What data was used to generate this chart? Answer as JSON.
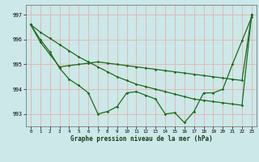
{
  "xlabel": "Graphe pression niveau de la mer (hPa)",
  "bg_color": "#cce8e8",
  "grid_color": "#e8b0b0",
  "line_color": "#1a6b1a",
  "ylim": [
    992.5,
    997.4
  ],
  "xlim": [
    -0.5,
    23.5
  ],
  "yticks": [
    993,
    994,
    995,
    996,
    997
  ],
  "xticks": [
    0,
    1,
    2,
    3,
    4,
    5,
    6,
    7,
    8,
    9,
    10,
    11,
    12,
    13,
    14,
    15,
    16,
    17,
    18,
    19,
    20,
    21,
    22,
    23
  ],
  "s1": [
    996.6,
    996.0,
    995.5,
    994.85,
    994.4,
    994.15,
    993.85,
    993.0,
    993.1,
    993.3,
    993.85,
    993.9,
    993.75,
    993.6,
    993.0,
    993.05,
    992.65,
    993.1,
    993.85,
    993.85,
    994.0,
    995.0,
    995.95,
    996.9
  ],
  "s2": [
    996.6,
    996.3,
    996.05,
    995.8,
    995.55,
    995.3,
    995.1,
    994.9,
    994.7,
    994.5,
    994.35,
    994.2,
    994.1,
    994.0,
    993.9,
    993.8,
    993.7,
    993.6,
    993.55,
    993.5,
    993.45,
    993.4,
    993.35,
    997.0
  ],
  "s3": [
    996.6,
    995.9,
    995.4,
    994.9,
    994.95,
    995.0,
    995.05,
    995.1,
    995.05,
    995.0,
    994.95,
    994.9,
    994.85,
    994.8,
    994.75,
    994.7,
    994.65,
    994.6,
    994.55,
    994.5,
    994.45,
    994.4,
    994.35,
    997.0
  ]
}
